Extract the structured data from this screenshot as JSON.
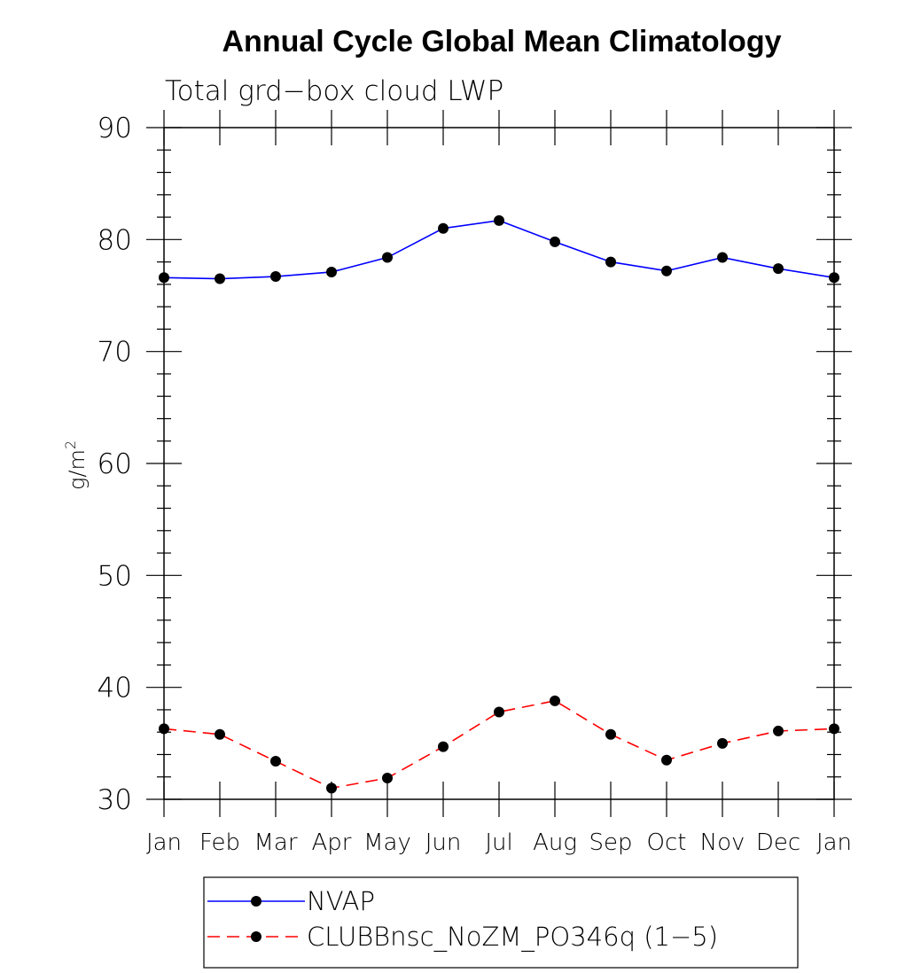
{
  "chart_data": {
    "type": "line",
    "title": "Annual Cycle Global Mean Climatology",
    "subtitle": "Total grd−box cloud LWP",
    "ylabel": "g/m",
    "ylabel_sup": "2",
    "xlabel": "",
    "ylim": [
      30,
      90
    ],
    "yticks": [
      "30",
      "40",
      "50",
      "60",
      "70",
      "80",
      "90"
    ],
    "categories": [
      "Jan",
      "Feb",
      "Mar",
      "Apr",
      "May",
      "Jun",
      "Jul",
      "Aug",
      "Sep",
      "Oct",
      "Nov",
      "Dec",
      "Jan"
    ],
    "series": [
      {
        "name": "NVAP",
        "color": "#0000ff",
        "dash": "solid",
        "values": [
          76.6,
          76.5,
          76.7,
          77.1,
          78.4,
          81.0,
          81.7,
          79.8,
          78.0,
          77.2,
          78.4,
          77.4,
          76.6
        ]
      },
      {
        "name": "CLUBBnsc_NoZM_PO346q (1−5)",
        "color": "#ff0000",
        "dash": "dashed",
        "values": [
          36.3,
          35.8,
          33.4,
          31.0,
          31.9,
          34.7,
          37.8,
          38.8,
          35.8,
          33.5,
          35.0,
          36.1,
          36.3
        ]
      }
    ],
    "grid": false,
    "legend_position": "bottom"
  }
}
